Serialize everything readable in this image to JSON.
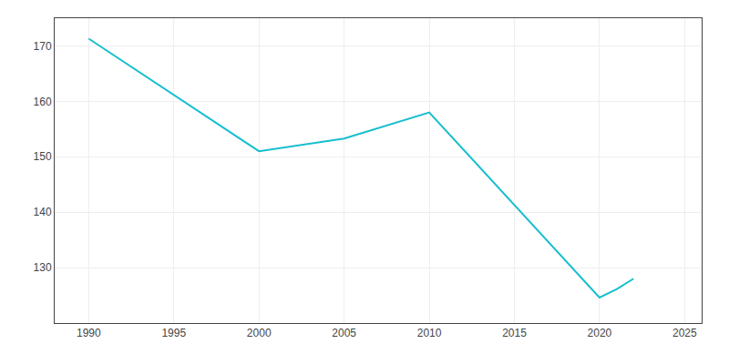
{
  "chart_data": {
    "type": "line",
    "x": [
      1990,
      2000,
      2005,
      2010,
      2020,
      2021,
      2022
    ],
    "values": [
      171.3,
      151.0,
      153.3,
      158.0,
      124.6,
      126.1,
      128.0
    ],
    "color": "#17becf",
    "xlim": [
      1988,
      2026
    ],
    "ylim": [
      120,
      175
    ],
    "xticks": [
      1990,
      1995,
      2000,
      2005,
      2010,
      2015,
      2020,
      2025
    ],
    "yticks": [
      130,
      140,
      150,
      160,
      170
    ],
    "grid": true
  }
}
